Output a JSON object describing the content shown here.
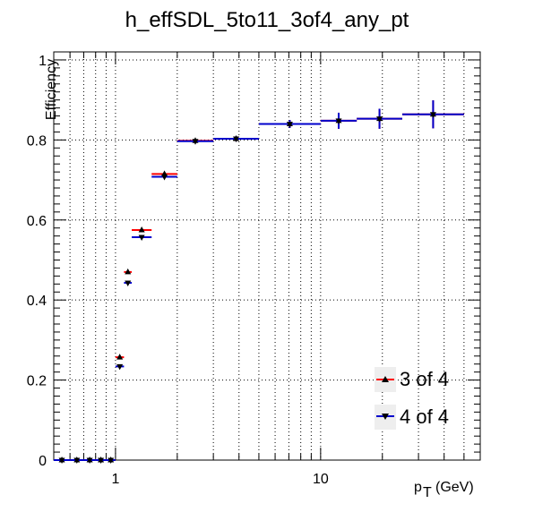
{
  "chart_data": {
    "type": "scatter",
    "title": "h_effSDL_5to11_3of4_any_pt",
    "xlabel": "p",
    "xlabel_sub": "T",
    "xlabel_unit": "(GeV)",
    "ylabel": "Efficiency",
    "xscale": "log",
    "xlim": [
      0.5,
      60
    ],
    "ylim": [
      0,
      1.02
    ],
    "grid": true,
    "legend_position": "bottom-right",
    "x_tick_labels": [
      {
        "value": 1,
        "label": "1"
      },
      {
        "value": 10,
        "label": "10"
      }
    ],
    "y_tick_labels": [
      {
        "value": 0,
        "label": "0"
      },
      {
        "value": 0.2,
        "label": "0.2"
      },
      {
        "value": 0.4,
        "label": "0.4"
      },
      {
        "value": 0.6,
        "label": "0.6"
      },
      {
        "value": 0.8,
        "label": "0.8"
      },
      {
        "value": 1,
        "label": "1"
      }
    ],
    "series": [
      {
        "name": "3 of 4",
        "color": "#ff0000",
        "marker": "triangle-up",
        "points": [
          {
            "xlo": 0.5,
            "xhi": 0.6,
            "y": 0.0,
            "err": 0.002
          },
          {
            "xlo": 0.6,
            "xhi": 0.7,
            "y": 0.0,
            "err": 0.002
          },
          {
            "xlo": 0.7,
            "xhi": 0.8,
            "y": 0.0,
            "err": 0.002
          },
          {
            "xlo": 0.8,
            "xhi": 0.9,
            "y": 0.0,
            "err": 0.002
          },
          {
            "xlo": 0.9,
            "xhi": 1.0,
            "y": 0.0,
            "err": 0.002
          },
          {
            "xlo": 1.0,
            "xhi": 1.1,
            "y": 0.257,
            "err": 0.004
          },
          {
            "xlo": 1.1,
            "xhi": 1.2,
            "y": 0.47,
            "err": 0.004
          },
          {
            "xlo": 1.2,
            "xhi": 1.5,
            "y": 0.575,
            "err": 0.004
          },
          {
            "xlo": 1.5,
            "xhi": 2.0,
            "y": 0.715,
            "err": 0.004
          },
          {
            "xlo": 2.0,
            "xhi": 3.0,
            "y": 0.798,
            "err": 0.004
          },
          {
            "xlo": 3.0,
            "xhi": 5.0,
            "y": 0.803,
            "err": 0.006
          },
          {
            "xlo": 5.0,
            "xhi": 10.0,
            "y": 0.84,
            "err": 0.01
          },
          {
            "xlo": 10.0,
            "xhi": 15.0,
            "y": 0.848,
            "err": 0.02
          },
          {
            "xlo": 15.0,
            "xhi": 25.0,
            "y": 0.853,
            "err": 0.025
          },
          {
            "xlo": 25.0,
            "xhi": 50.0,
            "y": 0.864,
            "err": 0.035
          }
        ]
      },
      {
        "name": "4 of 4",
        "color": "#0000cc",
        "marker": "triangle-down",
        "points": [
          {
            "xlo": 0.5,
            "xhi": 0.6,
            "y": 0.0,
            "err": 0.002
          },
          {
            "xlo": 0.6,
            "xhi": 0.7,
            "y": 0.0,
            "err": 0.002
          },
          {
            "xlo": 0.7,
            "xhi": 0.8,
            "y": 0.0,
            "err": 0.002
          },
          {
            "xlo": 0.8,
            "xhi": 0.9,
            "y": 0.0,
            "err": 0.002
          },
          {
            "xlo": 0.9,
            "xhi": 1.0,
            "y": 0.0,
            "err": 0.002
          },
          {
            "xlo": 1.0,
            "xhi": 1.1,
            "y": 0.234,
            "err": 0.004
          },
          {
            "xlo": 1.1,
            "xhi": 1.2,
            "y": 0.443,
            "err": 0.004
          },
          {
            "xlo": 1.2,
            "xhi": 1.5,
            "y": 0.557,
            "err": 0.004
          },
          {
            "xlo": 1.5,
            "xhi": 2.0,
            "y": 0.708,
            "err": 0.004
          },
          {
            "xlo": 2.0,
            "xhi": 3.0,
            "y": 0.797,
            "err": 0.004
          },
          {
            "xlo": 3.0,
            "xhi": 5.0,
            "y": 0.803,
            "err": 0.006
          },
          {
            "xlo": 5.0,
            "xhi": 10.0,
            "y": 0.84,
            "err": 0.01
          },
          {
            "xlo": 10.0,
            "xhi": 15.0,
            "y": 0.848,
            "err": 0.02
          },
          {
            "xlo": 15.0,
            "xhi": 25.0,
            "y": 0.853,
            "err": 0.025
          },
          {
            "xlo": 25.0,
            "xhi": 50.0,
            "y": 0.864,
            "err": 0.035
          }
        ]
      }
    ]
  }
}
